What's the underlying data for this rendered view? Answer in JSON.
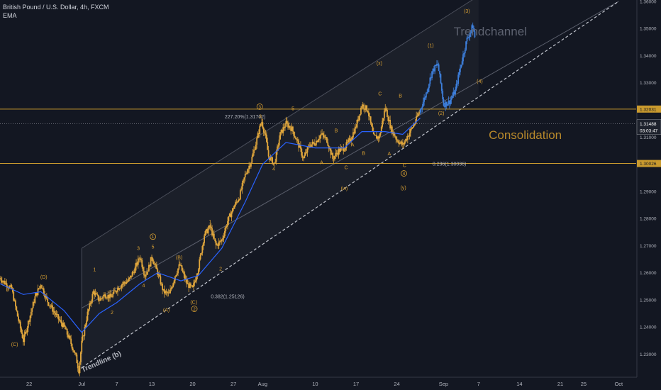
{
  "chart_data": {
    "type": "candlestick",
    "title": "British Pound / U.S. Dollar, 4h, FXCM",
    "indicator": "EMA",
    "xlabel": "",
    "ylabel": "",
    "ylim": [
      1.2215,
      1.3605
    ],
    "grid": false,
    "x_ticks": [
      {
        "label": "22",
        "day": -9
      },
      {
        "label": "Jul",
        "day": 0
      },
      {
        "label": "7",
        "day": 6
      },
      {
        "label": "13",
        "day": 12
      },
      {
        "label": "20",
        "day": 19
      },
      {
        "label": "27",
        "day": 26
      },
      {
        "label": "Aug",
        "day": 31
      },
      {
        "label": "10",
        "day": 40
      },
      {
        "label": "17",
        "day": 47
      },
      {
        "label": "24",
        "day": 54
      },
      {
        "label": "Sep",
        "day": 62
      },
      {
        "label": "7",
        "day": 68
      },
      {
        "label": "14",
        "day": 75
      },
      {
        "label": "21",
        "day": 82
      },
      {
        "label": "25",
        "day": 86
      },
      {
        "label": "Oct",
        "day": 92
      }
    ],
    "y_ticks": [
      "1.36000",
      "1.35000",
      "1.34000",
      "1.33000",
      "1.32000",
      "1.31000",
      "1.30000",
      "1.29000",
      "1.28000",
      "1.27000",
      "1.26000",
      "1.25000",
      "1.24000",
      "1.23000"
    ],
    "price_path": [
      {
        "day": -14,
        "price": 1.258
      },
      {
        "day": -12,
        "price": 1.254
      },
      {
        "day": -11,
        "price": 1.244
      },
      {
        "day": -10,
        "price": 1.235
      },
      {
        "day": -9,
        "price": 1.243
      },
      {
        "day": -8,
        "price": 1.251
      },
      {
        "day": -7,
        "price": 1.256
      },
      {
        "day": -6,
        "price": 1.25
      },
      {
        "day": -4,
        "price": 1.243
      },
      {
        "day": -3,
        "price": 1.24
      },
      {
        "day": -2,
        "price": 1.235
      },
      {
        "day": -1,
        "price": 1.229
      },
      {
        "day": -0.5,
        "price": 1.224
      },
      {
        "day": 0,
        "price": 1.234
      },
      {
        "day": 1,
        "price": 1.245
      },
      {
        "day": 2,
        "price": 1.253
      },
      {
        "day": 3,
        "price": 1.25
      },
      {
        "day": 4,
        "price": 1.252
      },
      {
        "day": 5,
        "price": 1.251
      },
      {
        "day": 6,
        "price": 1.254
      },
      {
        "day": 7,
        "price": 1.256
      },
      {
        "day": 8,
        "price": 1.257
      },
      {
        "day": 9,
        "price": 1.261
      },
      {
        "day": 10,
        "price": 1.266
      },
      {
        "day": 10.8,
        "price": 1.259
      },
      {
        "day": 11.5,
        "price": 1.262
      },
      {
        "day": 12,
        "price": 1.266
      },
      {
        "day": 13,
        "price": 1.26
      },
      {
        "day": 14,
        "price": 1.253
      },
      {
        "day": 15,
        "price": 1.252
      },
      {
        "day": 16,
        "price": 1.259
      },
      {
        "day": 16.8,
        "price": 1.263
      },
      {
        "day": 18,
        "price": 1.256
      },
      {
        "day": 19,
        "price": 1.254
      },
      {
        "day": 20,
        "price": 1.262
      },
      {
        "day": 21,
        "price": 1.274
      },
      {
        "day": 22,
        "price": 1.277
      },
      {
        "day": 23,
        "price": 1.27
      },
      {
        "day": 24,
        "price": 1.272
      },
      {
        "day": 25,
        "price": 1.279
      },
      {
        "day": 26,
        "price": 1.284
      },
      {
        "day": 27,
        "price": 1.288
      },
      {
        "day": 28,
        "price": 1.296
      },
      {
        "day": 29,
        "price": 1.301
      },
      {
        "day": 30,
        "price": 1.309
      },
      {
        "day": 30.8,
        "price": 1.316
      },
      {
        "day": 31.5,
        "price": 1.31
      },
      {
        "day": 32,
        "price": 1.303
      },
      {
        "day": 33,
        "price": 1.3
      },
      {
        "day": 34,
        "price": 1.311
      },
      {
        "day": 35,
        "price": 1.315
      },
      {
        "day": 36,
        "price": 1.313
      },
      {
        "day": 37,
        "price": 1.308
      },
      {
        "day": 38,
        "price": 1.302
      },
      {
        "day": 39,
        "price": 1.307
      },
      {
        "day": 40,
        "price": 1.308
      },
      {
        "day": 41,
        "price": 1.311
      },
      {
        "day": 42,
        "price": 1.309
      },
      {
        "day": 43,
        "price": 1.302
      },
      {
        "day": 44,
        "price": 1.305
      },
      {
        "day": 45,
        "price": 1.306
      },
      {
        "day": 46,
        "price": 1.309
      },
      {
        "day": 47,
        "price": 1.314
      },
      {
        "day": 48,
        "price": 1.322
      },
      {
        "day": 49,
        "price": 1.32
      },
      {
        "day": 50,
        "price": 1.31
      },
      {
        "day": 51,
        "price": 1.31
      },
      {
        "day": 52,
        "price": 1.321
      },
      {
        "day": 53,
        "price": 1.313
      },
      {
        "day": 54,
        "price": 1.309
      },
      {
        "day": 55,
        "price": 1.307
      },
      {
        "day": 56,
        "price": 1.311
      },
      {
        "day": 57,
        "price": 1.315
      },
      {
        "day": 58,
        "price": 1.32
      },
      {
        "day": 59,
        "price": 1.326
      },
      {
        "day": 60,
        "price": 1.334
      },
      {
        "day": 61,
        "price": 1.337
      },
      {
        "day": 61.5,
        "price": 1.33
      },
      {
        "day": 62,
        "price": 1.322
      },
      {
        "day": 63,
        "price": 1.323
      },
      {
        "day": 64,
        "price": 1.327
      },
      {
        "day": 65,
        "price": 1.337
      },
      {
        "day": 66,
        "price": 1.346
      },
      {
        "day": 67,
        "price": 1.351
      },
      {
        "day": 67.5,
        "price": 1.345
      }
    ],
    "projection_start_day": 58,
    "ema_path": [
      {
        "day": -14,
        "price": 1.256
      },
      {
        "day": -10,
        "price": 1.252
      },
      {
        "day": -7,
        "price": 1.253
      },
      {
        "day": -3,
        "price": 1.246
      },
      {
        "day": 0,
        "price": 1.238
      },
      {
        "day": 3,
        "price": 1.245
      },
      {
        "day": 6,
        "price": 1.249
      },
      {
        "day": 10,
        "price": 1.256
      },
      {
        "day": 13,
        "price": 1.26
      },
      {
        "day": 17,
        "price": 1.257
      },
      {
        "day": 20,
        "price": 1.259
      },
      {
        "day": 24,
        "price": 1.269
      },
      {
        "day": 28,
        "price": 1.286
      },
      {
        "day": 31,
        "price": 1.3
      },
      {
        "day": 35,
        "price": 1.308
      },
      {
        "day": 40,
        "price": 1.306
      },
      {
        "day": 45,
        "price": 1.306
      },
      {
        "day": 48,
        "price": 1.312
      },
      {
        "day": 52,
        "price": 1.312
      },
      {
        "day": 55,
        "price": 1.311
      },
      {
        "day": 58,
        "price": 1.317
      }
    ],
    "channel_upper": [
      {
        "day": 0,
        "price": 1.269
      },
      {
        "day": 68,
        "price": 1.362
      }
    ],
    "channel_middle": [
      {
        "day": 0,
        "price": 1.247
      },
      {
        "day": 92,
        "price": 1.36
      }
    ],
    "trendline_b": [
      {
        "day": 0,
        "price": 1.225
      },
      {
        "day": 92,
        "price": 1.36
      }
    ],
    "horizontal_levels": [
      {
        "price": 1.32031,
        "label": "1.32031"
      },
      {
        "price": 1.30026,
        "label": "1.30026"
      }
    ],
    "current_price": {
      "price": 1.31488,
      "label": "1.31488",
      "countdown": "03:03:47"
    },
    "fib_labels": [
      {
        "text": "227.20%(1.31762)",
        "day": 28,
        "price": 1.3176
      },
      {
        "text": "0.236(1.30036)",
        "day": 63,
        "price": 1.3003
      },
      {
        "text": "0.382(1.25126)",
        "day": 25,
        "price": 1.2514
      }
    ],
    "text_annotations": [
      {
        "text": "Trendchannel",
        "day": 70,
        "price": 1.3475,
        "size": "large",
        "color": "#5d6270"
      },
      {
        "text": "Consolidation",
        "day": 76,
        "price": 1.3093,
        "size": "large",
        "color": "#b8892b"
      },
      {
        "text": "Trendline (b)",
        "day": 3.5,
        "price": 1.2265,
        "size": "small",
        "color": "#b2b5be",
        "rotate": -24
      }
    ],
    "wave_labels": [
      {
        "text": "(C)",
        "day": -11.5,
        "price": 1.2338
      },
      {
        "text": "(D)",
        "day": -6.5,
        "price": 1.2586
      },
      {
        "text": "1",
        "day": 2.2,
        "price": 1.2613
      },
      {
        "text": "2",
        "day": 5.2,
        "price": 1.2455
      },
      {
        "text": "3",
        "day": 9.7,
        "price": 1.2692
      },
      {
        "text": "4",
        "day": 10.6,
        "price": 1.2555
      },
      {
        "text": "5",
        "day": 12.2,
        "price": 1.2697
      },
      {
        "text": "(A)",
        "day": 14.5,
        "price": 1.2465
      },
      {
        "text": "(B)",
        "day": 16.7,
        "price": 1.2658
      },
      {
        "text": "(C)",
        "day": 19.2,
        "price": 1.2493
      },
      {
        "text": "1",
        "day": 22.0,
        "price": 1.279
      },
      {
        "text": "2",
        "day": 23.8,
        "price": 1.2616
      },
      {
        "text": "3",
        "day": 30.6,
        "price": 1.3178
      },
      {
        "text": "4",
        "day": 32.9,
        "price": 1.2985
      },
      {
        "text": "5",
        "day": 36.2,
        "price": 1.3206
      },
      {
        "text": "A",
        "day": 41.1,
        "price": 1.3008
      },
      {
        "text": "B",
        "day": 43.6,
        "price": 1.3125
      },
      {
        "text": "C",
        "day": 45.3,
        "price": 1.299
      },
      {
        "text": "A",
        "day": 46.4,
        "price": 1.3073
      },
      {
        "text": "B",
        "day": 48.3,
        "price": 1.3042
      },
      {
        "text": "(w)",
        "day": 45.0,
        "price": 1.2913
      },
      {
        "text": "C",
        "day": 51.1,
        "price": 1.3262
      },
      {
        "text": "(x)",
        "day": 51.0,
        "price": 1.3374
      },
      {
        "text": "A",
        "day": 52.7,
        "price": 1.304
      },
      {
        "text": "B",
        "day": 54.6,
        "price": 1.3253
      },
      {
        "text": "C",
        "day": 55.3,
        "price": 1.2998
      },
      {
        "text": "(y)",
        "day": 55.1,
        "price": 1.2915
      },
      {
        "text": "(1)",
        "day": 59.8,
        "price": 1.3439
      },
      {
        "text": "(2)",
        "day": 61.6,
        "price": 1.319
      },
      {
        "text": "(3)",
        "day": 66.0,
        "price": 1.3566
      },
      {
        "text": "(4)",
        "day": 68.2,
        "price": 1.3307
      }
    ],
    "circled_labels": [
      {
        "text": "1",
        "day": 12.2,
        "price": 1.2733
      },
      {
        "text": "2",
        "day": 19.3,
        "price": 1.2467
      },
      {
        "text": "3",
        "day": 30.5,
        "price": 1.3212
      },
      {
        "text": "4",
        "day": 55.2,
        "price": 1.2966
      }
    ]
  },
  "colors": {
    "background": "#131722",
    "candle": "#e0a63c",
    "projection": "#3d7fdc",
    "ema": "#2962ff",
    "level": "#c99a2e",
    "label": "#d9a032",
    "text": "#d1d4dc",
    "axis_text": "#b2b5be",
    "channel": "#4a4e5a"
  }
}
